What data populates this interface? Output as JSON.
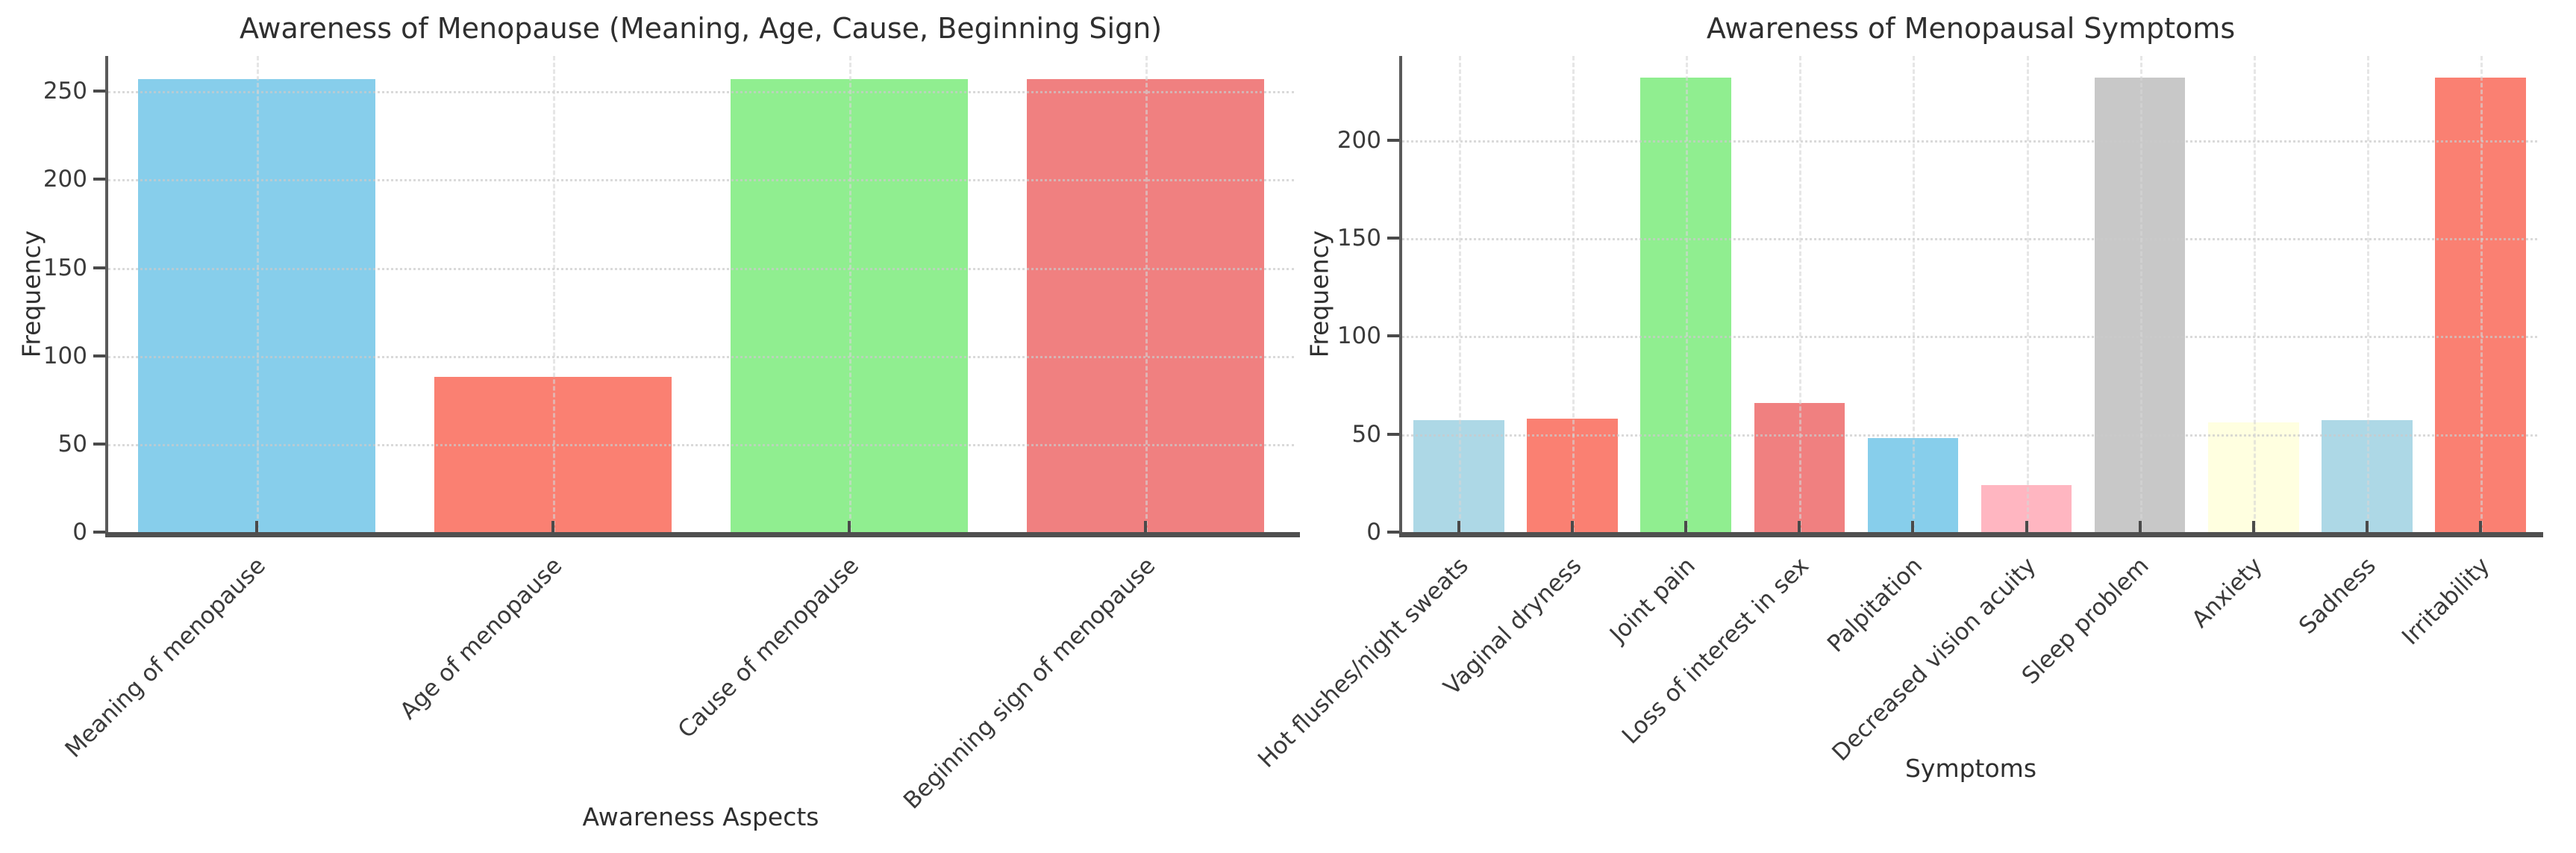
{
  "page": {
    "background": "#ffffff"
  },
  "chart_data": [
    {
      "type": "bar",
      "title": "Awareness of Menopause (Meaning, Age, Cause, Beginning Sign)",
      "xlabel": "Awareness Aspects",
      "ylabel": "Frequency",
      "categories": [
        "Meaning of menopause",
        "Age of menopause",
        "Cause of menopause",
        "Beginning sign of menopause"
      ],
      "values": [
        257,
        88,
        257,
        257
      ],
      "colors": [
        "#87CEEB",
        "#FA8072",
        "#90EE90",
        "#F08080"
      ],
      "yticks": [
        0,
        50,
        100,
        150,
        200,
        250
      ],
      "ylim": [
        0,
        270
      ],
      "grid": "dotted horizontal, dashed vertical at bar centers",
      "legend": "none",
      "bar_width_fraction": 0.8
    },
    {
      "type": "bar",
      "title": "Awareness of Menopausal Symptoms",
      "xlabel": "Symptoms",
      "ylabel": "Frequency",
      "categories": [
        "Hot flushes/night sweats",
        "Vaginal dryness",
        "Joint pain",
        "Loss of interest in sex",
        "Palpitation",
        "Decreased vision acuity",
        "Sleep problem",
        "Anxiety",
        "Sadness",
        "Irritability"
      ],
      "values": [
        57,
        58,
        232,
        66,
        48,
        24,
        232,
        56,
        57,
        232
      ],
      "colors": [
        "#ADD8E6",
        "#FA8072",
        "#90EE90",
        "#F08080",
        "#87CEEB",
        "#FFB6C1",
        "#C8C8C8",
        "#FFFFE0",
        "#ADD8E6",
        "#FA8072"
      ],
      "yticks": [
        0,
        50,
        100,
        150,
        200
      ],
      "ylim": [
        0,
        243
      ],
      "grid": "dotted horizontal, dashed vertical at bar centers",
      "legend": "none",
      "bar_width_fraction": 0.8
    }
  ]
}
